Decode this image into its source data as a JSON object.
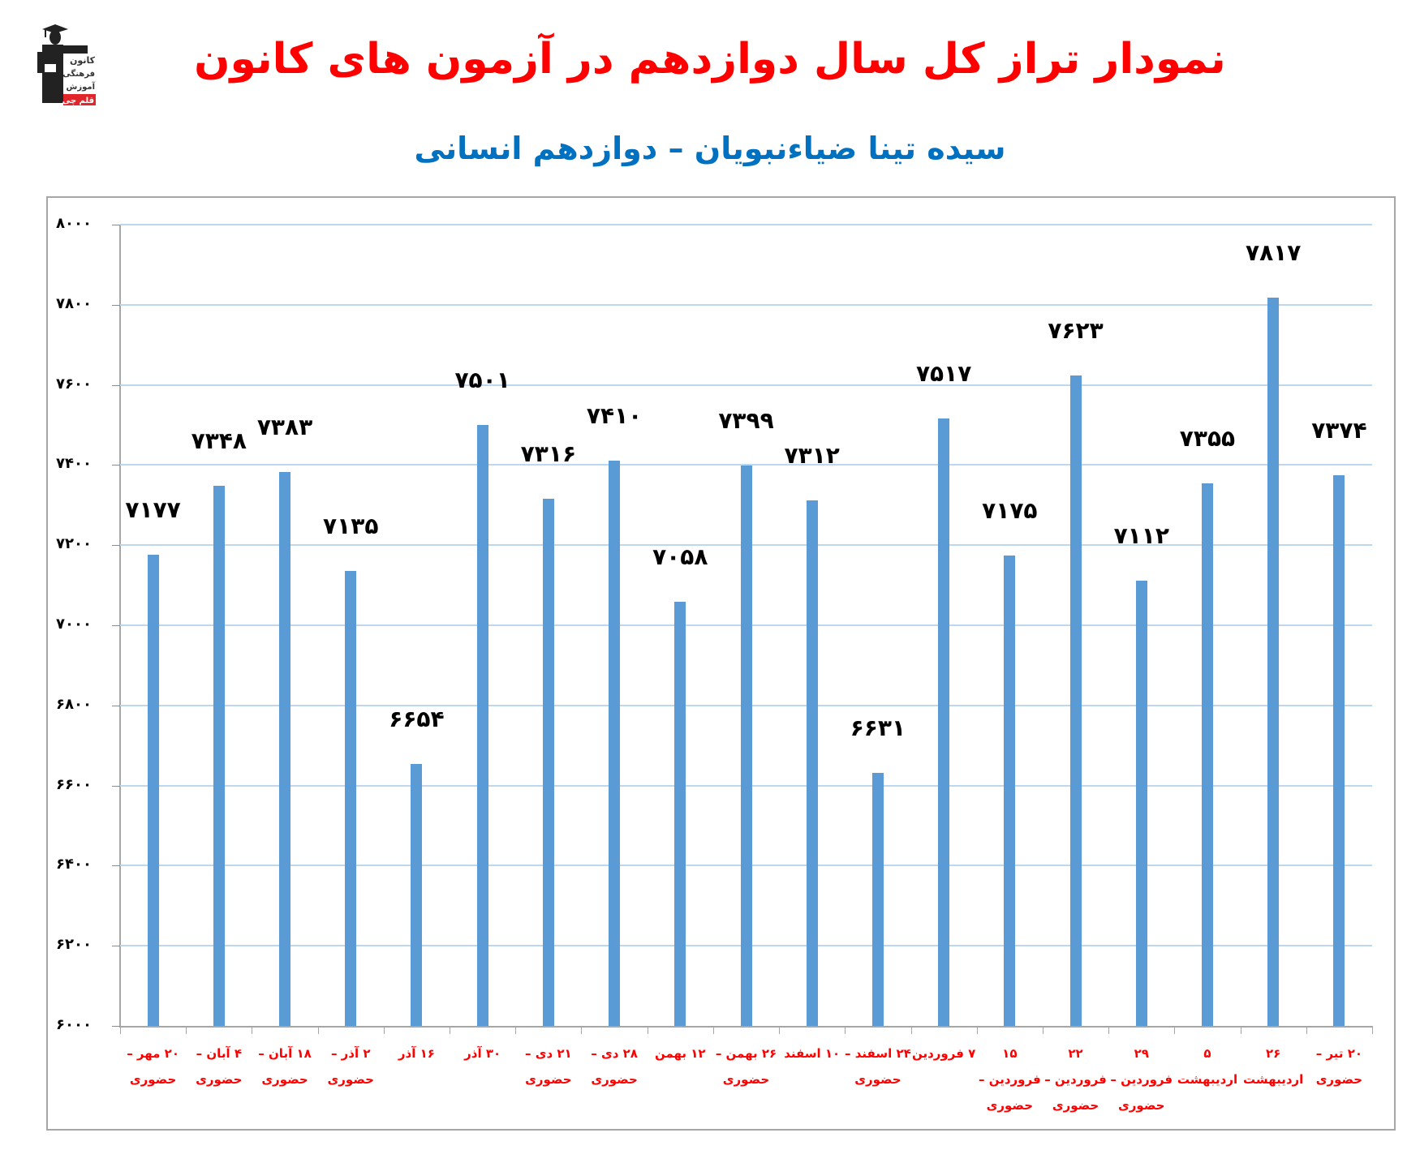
{
  "header": {
    "title": "نمودار تراز کل سال دوازدهم در آزمون های کانون",
    "subtitle": "سیده تینا ضیاءنبویان – دوازدهم انسانی",
    "logo": {
      "icon": "graduate-logo-icon",
      "lines": [
        "کانون",
        "فرهنگی",
        "آموزش",
        "قلم چی"
      ]
    }
  },
  "colors": {
    "title": "#ff0000",
    "subtitle": "#0070c0",
    "bar": "#5b9bd5",
    "gridline": "#bdd7ee",
    "xlabel": "#ff0000"
  },
  "chart_data": {
    "type": "bar",
    "title": "نمودار تراز کل سال دوازدهم در آزمون های کانون",
    "subtitle": "سیده تینا ضیاءنبویان – دوازدهم انسانی",
    "xlabel": "",
    "ylabel": "",
    "ylim": [
      6000,
      8000
    ],
    "yticks": [
      6000,
      6200,
      6400,
      6600,
      6800,
      7000,
      7200,
      7400,
      7600,
      7800,
      8000
    ],
    "ytick_labels": [
      "۶۰۰۰",
      "۶۲۰۰",
      "۶۴۰۰",
      "۶۶۰۰",
      "۶۸۰۰",
      "۷۰۰۰",
      "۷۲۰۰",
      "۷۴۰۰",
      "۷۶۰۰",
      "۷۸۰۰",
      "۸۰۰۰"
    ],
    "grid": true,
    "legend": null,
    "categories": [
      "۲۰ مهر – حضوری",
      "۴ آبان – حضوری",
      "۱۸ آبان – حضوری",
      "۲ آذر – حضوری",
      "۱۶ آذر",
      "۳۰ آذر",
      "۲۱ دی – حضوری",
      "۲۸ دی – حضوری",
      "۱۲ بهمن",
      "۲۶ بهمن – حضوری",
      "۱۰ اسفند",
      "۲۴ اسفند – حضوری",
      "۷ فروردین",
      "۱۵ فروردین – حضوری",
      "۲۲ فروردین – حضوری",
      "۲۹ فروردین – حضوری",
      "۵ اردیبهشت",
      "۲۶ اردیبهشت",
      "۲۰ تیر – حضوری"
    ],
    "values": [
      7177,
      7348,
      7383,
      7135,
      6654,
      7501,
      7316,
      7410,
      7058,
      7399,
      7312,
      6631,
      7517,
      7175,
      7623,
      7112,
      7355,
      7817,
      7374
    ],
    "value_labels": [
      "۷۱۷۷",
      "۷۳۴۸",
      "۷۳۸۳",
      "۷۱۳۵",
      "۶۶۵۴",
      "۷۵۰۱",
      "۷۳۱۶",
      "۷۴۱۰",
      "۷۰۵۸",
      "۷۳۹۹",
      "۷۳۱۲",
      "۶۶۳۱",
      "۷۵۱۷",
      "۷۱۷۵",
      "۷۶۲۳",
      "۷۱۱۲",
      "۷۳۵۵",
      "۷۸۱۷",
      "۷۳۷۴"
    ]
  }
}
